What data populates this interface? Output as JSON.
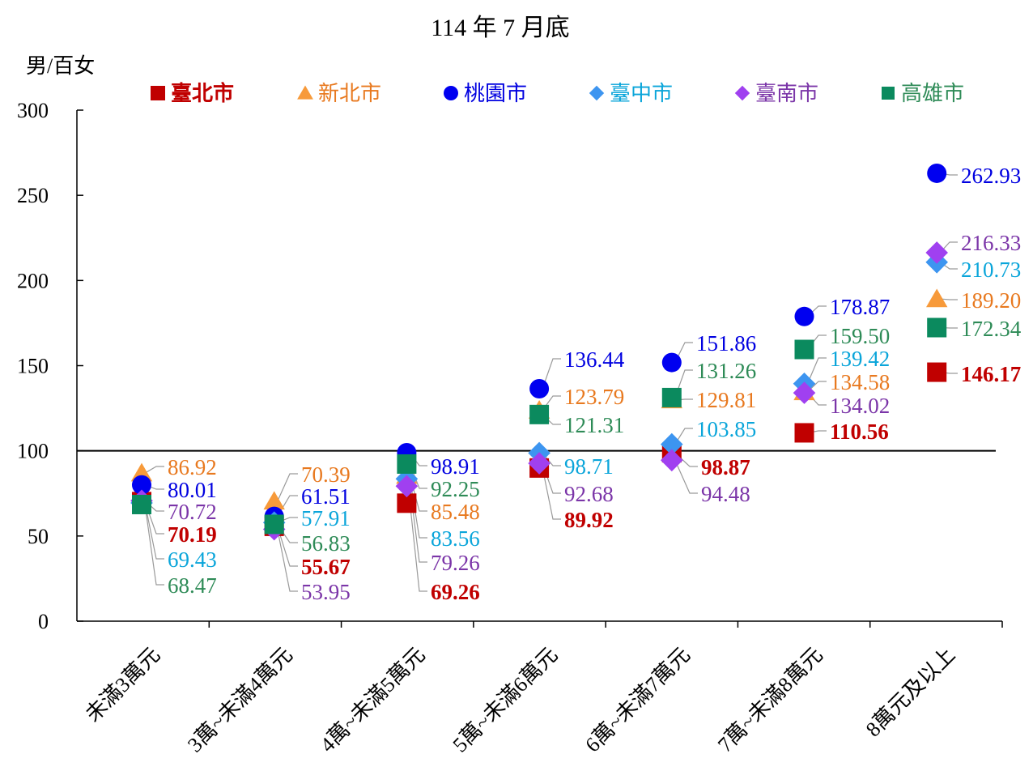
{
  "chart_data": {
    "type": "scatter",
    "title": "114 年 7 月底",
    "ylabel": "男/百女",
    "xlabel": "",
    "ylim": [
      0,
      300
    ],
    "yticks": [
      0,
      50,
      100,
      150,
      200,
      250,
      300
    ],
    "reference_line": 100,
    "legend_position": "top",
    "categories": [
      "未滿3萬元",
      "3萬~未滿4萬元",
      "4萬~未滿5萬元",
      "5萬~未滿6萬元",
      "6萬~未滿7萬元",
      "7萬~未滿8萬元",
      "8萬元及以上"
    ],
    "series": [
      {
        "name": "臺北市",
        "marker": "square",
        "color": "#C00000",
        "label_color": "#C00000",
        "bold": true,
        "legend_marker_size": 18,
        "values": [
          70.19,
          55.67,
          69.26,
          89.92,
          98.87,
          110.56,
          146.17
        ],
        "display": [
          "70.19",
          "55.67",
          "69.26",
          "89.92",
          "98.87",
          "110.56",
          "146.17"
        ]
      },
      {
        "name": "新北市",
        "marker": "triangle",
        "color": "#F79A3A",
        "label_color": "#E8791F",
        "bold": false,
        "legend_marker_size": 18,
        "values": [
          86.92,
          70.39,
          85.48,
          123.79,
          129.81,
          134.58,
          189.2
        ],
        "display": [
          "86.92",
          "70.39",
          "85.48",
          "123.79",
          "129.81",
          "134.58",
          "189.20"
        ]
      },
      {
        "name": "桃園市",
        "marker": "circle",
        "color": "#0000F0",
        "label_color": "#0000E0",
        "bold": false,
        "legend_marker_size": 18,
        "values": [
          80.01,
          61.51,
          98.91,
          136.44,
          151.86,
          178.87,
          262.93
        ],
        "display": [
          "80.01",
          "61.51",
          "98.91",
          "136.44",
          "151.86",
          "178.87",
          "262.93"
        ]
      },
      {
        "name": "臺中市",
        "marker": "diamond",
        "color": "#3D95F0",
        "label_color": "#0AA5DA",
        "bold": false,
        "legend_marker_size": 16,
        "values": [
          69.43,
          57.91,
          83.56,
          98.71,
          103.85,
          139.42,
          210.73
        ],
        "display": [
          "69.43",
          "57.91",
          "83.56",
          "98.71",
          "103.85",
          "139.42",
          "210.73"
        ]
      },
      {
        "name": "臺南市",
        "marker": "diamond",
        "color": "#A040F0",
        "label_color": "#7B35A8",
        "bold": false,
        "legend_marker_size": 16,
        "values": [
          70.72,
          53.95,
          79.26,
          92.68,
          94.48,
          134.02,
          216.33
        ],
        "display": [
          "70.72",
          "53.95",
          "79.26",
          "92.68",
          "94.48",
          "134.02",
          "216.33"
        ]
      },
      {
        "name": "高雄市",
        "marker": "square",
        "color": "#0B8A5E",
        "label_color": "#2E8B57",
        "bold": false,
        "legend_marker_size": 16,
        "values": [
          68.47,
          56.83,
          92.25,
          121.31,
          131.26,
          159.5,
          172.34
        ],
        "display": [
          "68.47",
          "56.83",
          "92.25",
          "121.31",
          "131.26",
          "159.50",
          "172.34"
        ]
      }
    ]
  }
}
